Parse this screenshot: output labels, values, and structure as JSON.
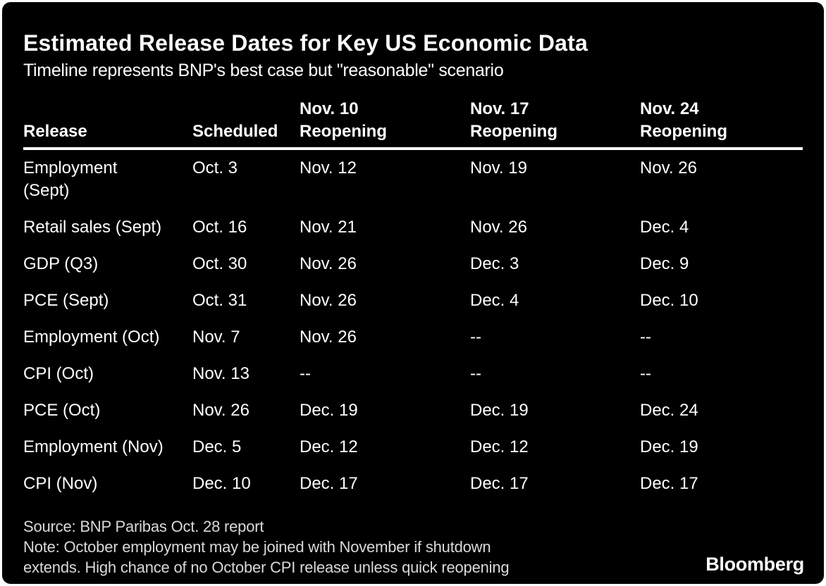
{
  "colors": {
    "background": "#000000",
    "frame": "#ffffff",
    "text": "#ffffff",
    "note_text": "#d9d9d9",
    "header_rule": "#ffffff"
  },
  "chart_data": {
    "type": "table",
    "title": "Estimated Release Dates for Key US Economic Data",
    "subtitle": "Timeline represents BNP's best case but \"reasonable\" scenario",
    "columns": [
      "Release",
      "Scheduled",
      "Nov. 10 Reopening",
      "Nov. 17 Reopening",
      "Nov. 24 Reopening"
    ],
    "rows": [
      [
        "Employment\n(Sept)",
        "Oct. 3",
        "Nov. 12",
        "Nov. 19",
        "Nov. 26"
      ],
      [
        "Retail sales (Sept)",
        "Oct. 16",
        "Nov. 21",
        "Nov. 26",
        "Dec. 4"
      ],
      [
        "GDP (Q3)",
        "Oct. 30",
        "Nov. 26",
        "Dec. 3",
        "Dec. 9"
      ],
      [
        "PCE (Sept)",
        "Oct. 31",
        "Nov. 26",
        "Dec. 4",
        "Dec. 10"
      ],
      [
        "Employment (Oct)",
        "Nov. 7",
        "Nov. 26",
        "--",
        "--"
      ],
      [
        "CPI (Oct)",
        "Nov. 13",
        "--",
        "--",
        "--"
      ],
      [
        "PCE (Oct)",
        "Nov. 26",
        "Dec. 19",
        "Dec. 19",
        "Dec. 24"
      ],
      [
        "Employment (Nov)",
        "Dec. 5",
        "Dec. 12",
        "Dec. 12",
        "Dec. 19"
      ],
      [
        "CPI (Nov)",
        "Dec. 10",
        "Dec. 17",
        "Dec. 17",
        "Dec. 17"
      ]
    ],
    "source": "Source: BNP Paribas Oct. 28 report",
    "note_lines": [
      "Note: October employment may be joined with November if shutdown",
      "extends. High chance of no October CPI release unless quick reopening"
    ],
    "legend": "none",
    "grid": "off"
  },
  "table": {
    "columns_display": [
      {
        "line1": "",
        "line2": "Release"
      },
      {
        "line1": "",
        "line2": "Scheduled"
      },
      {
        "line1": "Nov. 10",
        "line2": "Reopening"
      },
      {
        "line1": "Nov. 17",
        "line2": "Reopening"
      },
      {
        "line1": "Nov. 24",
        "line2": "Reopening"
      }
    ]
  },
  "footer": {
    "brand": "Bloomberg"
  }
}
